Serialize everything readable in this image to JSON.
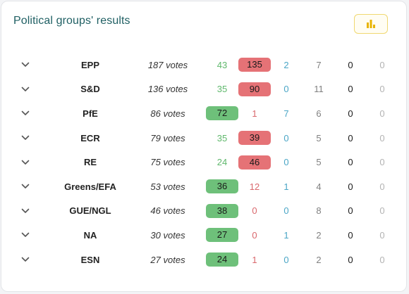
{
  "title": "Political groups' results",
  "icons": {
    "chart_button": "bar-chart-icon",
    "expand": "chevron-down-icon"
  },
  "colors": {
    "for": "#6ec07a",
    "against": "#e57276",
    "abstain": "#4ba6c6",
    "did_not_vote": "#808080",
    "absent": "#1a1a1a",
    "excused": "#b3b3b3",
    "title": "#1f5f63"
  },
  "groups": [
    {
      "name": "EPP",
      "votes": "187 votes",
      "counts": [
        "43",
        "135",
        "2",
        "7",
        "0",
        "0"
      ],
      "majority": 1
    },
    {
      "name": "S&D",
      "votes": "136 votes",
      "counts": [
        "35",
        "90",
        "0",
        "11",
        "0",
        "0"
      ],
      "majority": 1
    },
    {
      "name": "PfE",
      "votes": "86 votes",
      "counts": [
        "72",
        "1",
        "7",
        "6",
        "0",
        "0"
      ],
      "majority": 0
    },
    {
      "name": "ECR",
      "votes": "79 votes",
      "counts": [
        "35",
        "39",
        "0",
        "5",
        "0",
        "0"
      ],
      "majority": 1
    },
    {
      "name": "RE",
      "votes": "75 votes",
      "counts": [
        "24",
        "46",
        "0",
        "5",
        "0",
        "0"
      ],
      "majority": 1
    },
    {
      "name": "Greens/EFA",
      "votes": "53 votes",
      "counts": [
        "36",
        "12",
        "1",
        "4",
        "0",
        "0"
      ],
      "majority": 0
    },
    {
      "name": "GUE/NGL",
      "votes": "46 votes",
      "counts": [
        "38",
        "0",
        "0",
        "8",
        "0",
        "0"
      ],
      "majority": 0
    },
    {
      "name": "NA",
      "votes": "30 votes",
      "counts": [
        "27",
        "0",
        "1",
        "2",
        "0",
        "0"
      ],
      "majority": 0
    },
    {
      "name": "ESN",
      "votes": "27 votes",
      "counts": [
        "24",
        "1",
        "0",
        "2",
        "0",
        "0"
      ],
      "majority": 0
    }
  ]
}
